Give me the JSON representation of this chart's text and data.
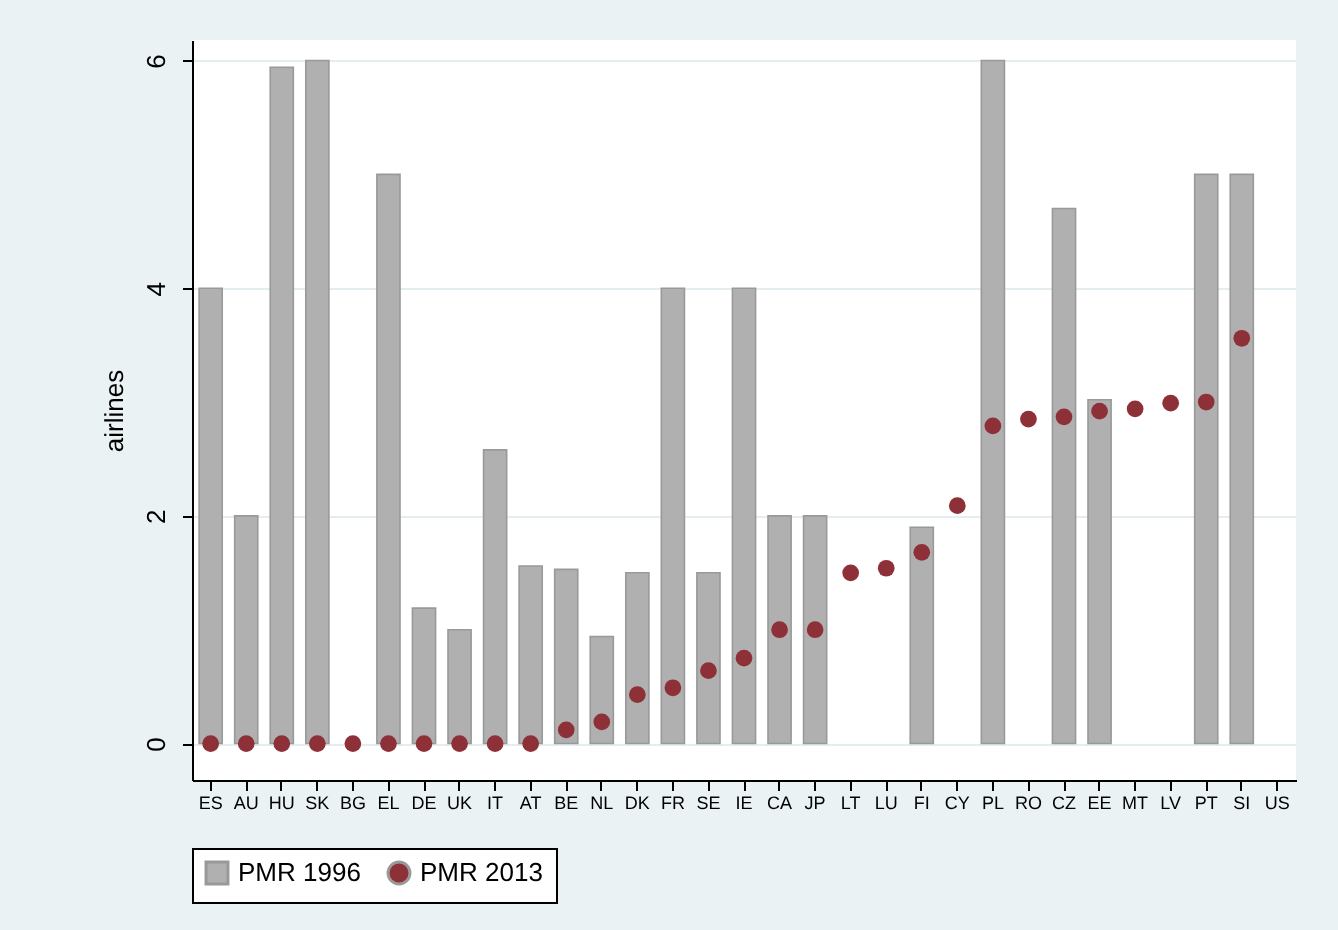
{
  "chart_data": {
    "type": "bar",
    "ylabel": "airlines",
    "categories": [
      "ES",
      "AU",
      "HU",
      "SK",
      "BG",
      "EL",
      "DE",
      "UK",
      "IT",
      "AT",
      "BE",
      "NL",
      "DK",
      "FR",
      "SE",
      "IE",
      "CA",
      "JP",
      "LT",
      "LU",
      "FI",
      "CY",
      "PL",
      "RO",
      "CZ",
      "EE",
      "MT",
      "LV",
      "PT",
      "SI",
      "US"
    ],
    "series": [
      {
        "name": "PMR 1996",
        "color": "#b0b0b0",
        "values": [
          4,
          2,
          5.94,
          6,
          null,
          5,
          1.19,
          1.0,
          2.58,
          1.56,
          1.53,
          0.94,
          1.5,
          4,
          1.5,
          4,
          2,
          2,
          null,
          null,
          1.9,
          null,
          6,
          null,
          4.7,
          3.02,
          null,
          null,
          5,
          5,
          null
        ]
      },
      {
        "name": "PMR 2013",
        "type": "scatter",
        "marker": "circle",
        "color": "#8e3037",
        "values": [
          0,
          0,
          0,
          0,
          0,
          0,
          0,
          0,
          0,
          0,
          0.12,
          0.19,
          0.43,
          0.49,
          0.64,
          0.75,
          1.0,
          1.0,
          1.5,
          1.54,
          1.68,
          2.09,
          2.79,
          2.85,
          2.87,
          2.92,
          2.94,
          2.99,
          3.0,
          3.56,
          null
        ]
      }
    ],
    "ylim": [
      -0.32,
      6.18
    ],
    "yticks": [
      0,
      2,
      4,
      6
    ],
    "grid": "y",
    "legend": "bottom"
  }
}
